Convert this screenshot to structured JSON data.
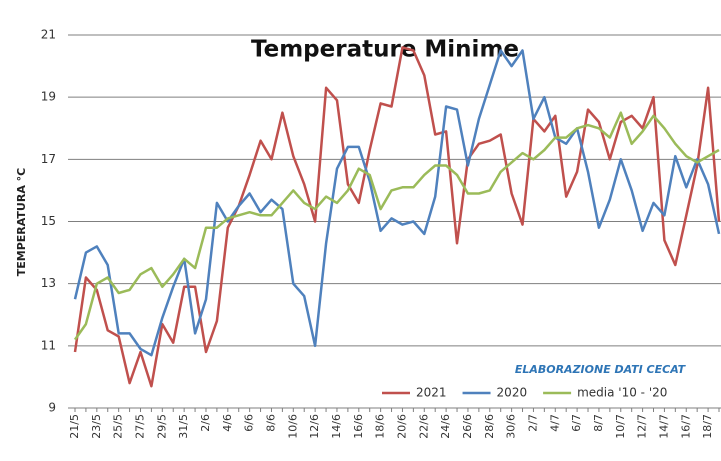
{
  "chart_data": {
    "type": "line",
    "title": "Temperature Minime",
    "y_label": "TEMPERATURA °C",
    "annotation": "ELABORAZIONE DATI CECAT",
    "categories": [
      "21/5",
      null,
      "23/5",
      null,
      "25/5",
      null,
      "27/5",
      null,
      "29/5",
      null,
      "31/5",
      null,
      "2/6",
      null,
      "4/6",
      null,
      "6/6",
      null,
      "8/6",
      null,
      "10/6",
      null,
      "12/6",
      null,
      "14/6",
      null,
      "16/6",
      null,
      "18/6",
      null,
      "20/6",
      null,
      "22/6",
      null,
      "24/6",
      null,
      "26/6",
      null,
      "28/6",
      null,
      "30/6",
      null,
      "2/7",
      null,
      "4/7",
      null,
      "6/7",
      null,
      "8/7",
      null,
      "10/7",
      null,
      "12/7",
      null,
      "14/7",
      null,
      "16/7",
      null,
      "18/7",
      null
    ],
    "series": [
      {
        "name": "2021",
        "color": "#c0504d",
        "values": [
          10.8,
          13.2,
          12.8,
          11.5,
          11.3,
          9.8,
          10.8,
          9.7,
          11.7,
          11.1,
          12.9,
          12.9,
          10.8,
          11.8,
          14.8,
          15.5,
          16.5,
          17.6,
          17.0,
          18.5,
          17.1,
          16.2,
          15.0,
          19.3,
          18.9,
          16.2,
          15.6,
          17.3,
          18.8,
          18.7,
          20.6,
          20.5,
          19.7,
          17.8,
          17.9,
          14.3,
          17.0,
          17.5,
          17.6,
          17.8,
          15.9,
          14.9,
          18.3,
          17.9,
          18.4,
          15.8,
          16.6,
          18.6,
          18.2,
          17.0,
          18.2,
          18.4,
          18.0,
          19.0,
          14.4,
          13.6,
          15.2,
          16.8,
          19.3,
          15.0
        ]
      },
      {
        "name": "2020",
        "color": "#4f81bd",
        "values": [
          12.5,
          14.0,
          14.2,
          13.6,
          11.4,
          11.4,
          10.9,
          10.7,
          11.9,
          12.9,
          13.8,
          11.4,
          12.5,
          15.6,
          15.0,
          15.5,
          15.9,
          15.3,
          15.7,
          15.4,
          13.0,
          12.6,
          11.0,
          14.3,
          16.7,
          17.4,
          17.4,
          16.3,
          14.7,
          15.1,
          14.9,
          15.0,
          14.6,
          15.8,
          18.7,
          18.6,
          16.8,
          18.3,
          19.4,
          20.5,
          20.0,
          20.5,
          18.3,
          19.0,
          17.7,
          17.5,
          18.0,
          16.6,
          14.8,
          15.7,
          17.0,
          16.0,
          14.7,
          15.6,
          15.2,
          17.1,
          16.1,
          17.0,
          16.2,
          14.6
        ]
      },
      {
        "name": "media '10 - '20",
        "color": "#9bbb59",
        "values": [
          11.2,
          11.7,
          13.0,
          13.2,
          12.7,
          12.8,
          13.3,
          13.5,
          12.9,
          13.3,
          13.8,
          13.5,
          14.8,
          14.8,
          15.1,
          15.2,
          15.3,
          15.2,
          15.2,
          15.6,
          16.0,
          15.6,
          15.4,
          15.8,
          15.6,
          16.0,
          16.7,
          16.5,
          15.4,
          16.0,
          16.1,
          16.1,
          16.5,
          16.8,
          16.8,
          16.5,
          15.9,
          15.9,
          16.0,
          16.6,
          16.9,
          17.2,
          17.0,
          17.3,
          17.7,
          17.7,
          18.0,
          18.1,
          18.0,
          17.7,
          18.5,
          17.5,
          17.9,
          18.4,
          18.0,
          17.5,
          17.1,
          16.9,
          17.1,
          17.3
        ]
      }
    ],
    "ylim": [
      9,
      21
    ],
    "yticks": [
      9,
      11,
      13,
      15,
      17,
      19,
      21
    ],
    "grid": true
  }
}
